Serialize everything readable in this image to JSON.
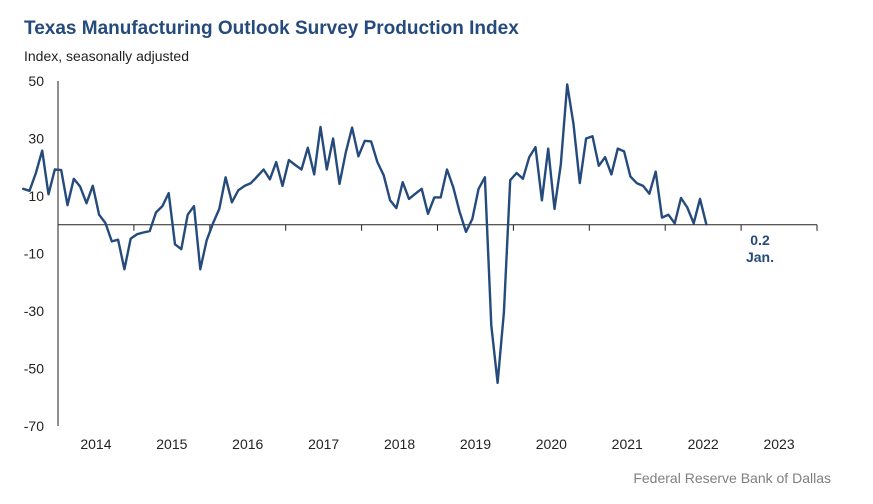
{
  "title": "Texas Manufacturing Outlook Survey Production Index",
  "subtitle": "Index, seasonally adjusted",
  "source": "Federal Reserve Bank of Dallas",
  "colors": {
    "line": "#254a7c",
    "title": "#254a7c",
    "axis": "#222222",
    "source": "#7f7f7f"
  },
  "chart_data": {
    "type": "line",
    "title": "Texas Manufacturing Outlook Survey Production Index",
    "ylabel": "Index, seasonally adjusted",
    "xlabel": "",
    "ylim": [
      -70,
      50
    ],
    "yticks": [
      50,
      30,
      10,
      -10,
      -30,
      -50,
      -70
    ],
    "ytick_labels": [
      "50",
      "30",
      "10",
      "-10",
      "-30",
      "-50",
      "-70"
    ],
    "xlim": [
      2013.5,
      2023.5
    ],
    "xtick_labels": [
      "2014",
      "2015",
      "2016",
      "2017",
      "2018",
      "2019",
      "2020",
      "2021",
      "2022",
      "2023"
    ],
    "grid": false,
    "series": [
      {
        "name": "Production Index",
        "start": "2013-07",
        "frequency": "monthly",
        "values": [
          12.5,
          11.8,
          18.0,
          25.8,
          10.6,
          19.2,
          19.0,
          6.8,
          16.0,
          13.3,
          7.5,
          13.6,
          3.5,
          0.6,
          -5.8,
          -5.2,
          -15.5,
          -4.8,
          -3.3,
          -2.7,
          -2.2,
          4.3,
          6.5,
          11.0,
          -6.8,
          -8.5,
          3.5,
          6.5,
          -15.5,
          -5.5,
          0.5,
          5.5,
          16.5,
          7.8,
          12.0,
          13.5,
          14.5,
          16.8,
          19.2,
          15.8,
          21.8,
          13.5,
          22.5,
          20.8,
          19.2,
          26.8,
          17.5,
          34.0,
          19.2,
          30.0,
          14.2,
          25.2,
          33.8,
          23.8,
          29.2,
          29.0,
          21.8,
          17.2,
          8.5,
          5.8,
          14.8,
          9.0,
          10.8,
          12.5,
          3.8,
          9.5,
          9.5,
          19.2,
          13.0,
          4.5,
          -2.5,
          2.0,
          12.5,
          16.5,
          -35.0,
          -55.0,
          -30.5,
          15.5,
          18.0,
          16.0,
          23.5,
          27.0,
          8.5,
          26.5,
          5.5,
          21.0,
          48.8,
          35.0,
          14.5,
          30.0,
          30.8,
          20.5,
          23.5,
          17.5,
          26.5,
          25.5,
          16.8,
          14.5,
          13.5,
          10.8,
          18.5,
          2.5,
          3.5,
          0.5,
          9.3,
          6.0,
          0.5,
          9.0,
          0.2
        ]
      }
    ],
    "annotation": {
      "value_label": "0.2",
      "month_label": "Jan."
    }
  }
}
